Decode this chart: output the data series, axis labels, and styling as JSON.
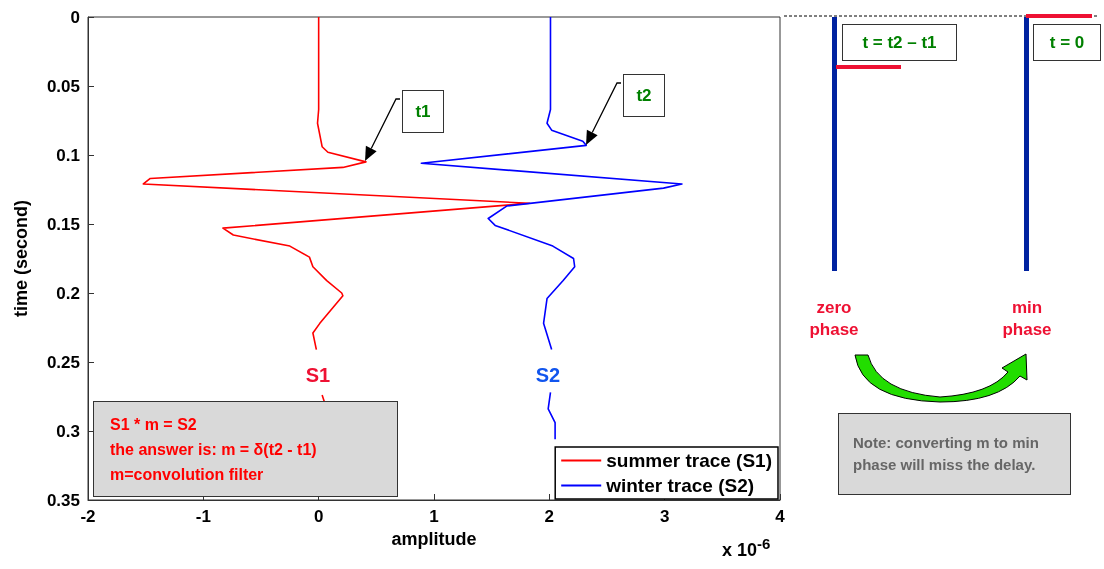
{
  "chart_data": {
    "type": "line",
    "xlabel": "amplitude",
    "ylabel": "time (second)",
    "xlim": [
      -2,
      4
    ],
    "xticks": [
      -2,
      -1,
      0,
      1,
      2,
      3,
      4
    ],
    "ylim": [
      0.35,
      0
    ],
    "yticks": [
      0,
      0.05,
      0.1,
      0.15,
      0.2,
      0.25,
      0.3,
      0.35
    ],
    "grid": false,
    "legend": "bottom right",
    "marker": "none",
    "line_style": "solid",
    "series": [
      {
        "name": "summer trace (S1)",
        "color": "#ff0000",
        "x": [
          0,
          0,
          -0.01,
          0.03,
          0.08,
          0.41,
          0.21,
          -1.46,
          -1.52,
          1.83,
          -0.83,
          -0.74,
          -0.25,
          -0.08,
          -0.05,
          0.07,
          0.2,
          0.21,
          0.01,
          -0.05,
          -0.02,
          null,
          0.03,
          0.05
        ],
        "values": [
          0,
          0.067,
          0.077,
          0.094,
          0.098,
          0.105,
          0.109,
          0.117,
          0.121,
          0.135,
          0.153,
          0.158,
          0.166,
          0.174,
          0.181,
          0.191,
          0.2,
          0.202,
          0.222,
          0.229,
          0.241,
          null,
          0.274,
          0.279
        ]
      },
      {
        "name": "winter trace (S2)",
        "color": "#0000ff",
        "x": [
          2.01,
          2.01,
          1.98,
          2.02,
          2.29,
          2.32,
          0.89,
          3.15,
          2.99,
          1.63,
          1.47,
          1.53,
          2.03,
          2.21,
          2.22,
          2.12,
          1.98,
          1.95,
          2.02,
          null,
          2.01,
          1.99,
          2.05,
          2.05
        ],
        "values": [
          0,
          0.067,
          0.077,
          0.082,
          0.09,
          0.093,
          0.106,
          0.121,
          0.124,
          0.137,
          0.146,
          0.151,
          0.166,
          0.175,
          0.181,
          0.191,
          0.204,
          0.222,
          0.241,
          null,
          0.272,
          0.284,
          0.294,
          0.306
        ]
      }
    ],
    "annotations": [
      "t1",
      "t2",
      "S1",
      "S2",
      "x 10$^{-6}$",
      "S1 * m = S2",
      "the answer is: m = δ(t2 - t1)",
      "m=convolution filter",
      "t = t2 – t1",
      "t = 0",
      "zero phase",
      "min phase",
      "Note: converting m to min phase will miss the delay."
    ]
  }
}
